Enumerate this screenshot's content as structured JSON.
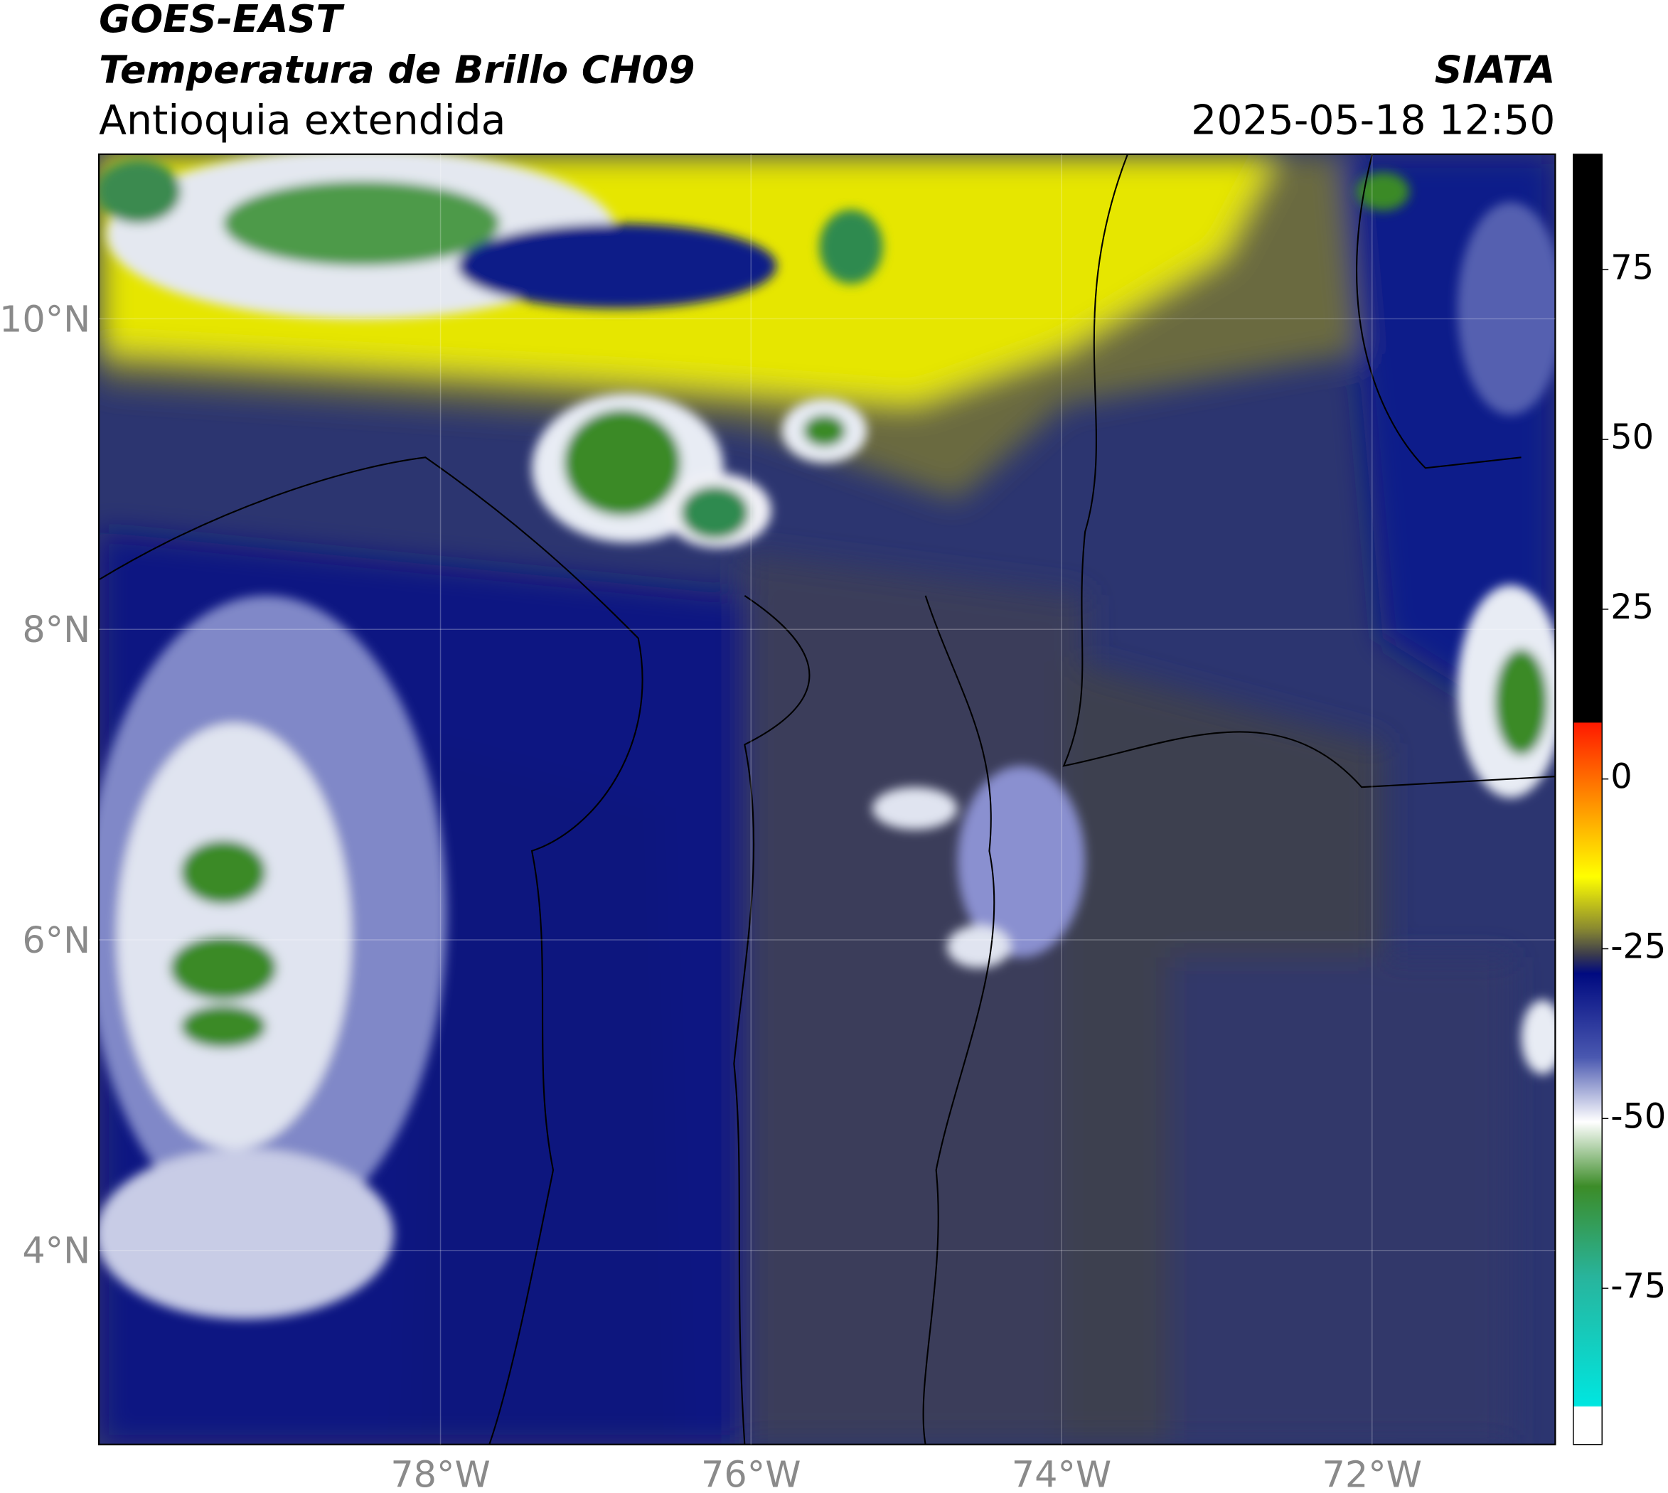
{
  "header": {
    "title": "GOES-EAST",
    "subtitle": "Temperatura de Brillo CH09",
    "region": "Antioquia extendida",
    "agency": "SIATA",
    "datetime": "2025-05-18 12:50"
  },
  "map": {
    "lon_range": [
      -80.2,
      -70.82
    ],
    "lat_range": [
      2.75,
      11.06
    ],
    "lon_ticks": [
      {
        "value": -78,
        "label": "78°W"
      },
      {
        "value": -76,
        "label": "76°W"
      },
      {
        "value": -74,
        "label": "74°W"
      },
      {
        "value": -72,
        "label": "72°W"
      }
    ],
    "lat_ticks": [
      {
        "value": 10,
        "label": "10°N"
      },
      {
        "value": 8,
        "label": "8°N"
      },
      {
        "value": 6,
        "label": "6°N"
      },
      {
        "value": 4,
        "label": "4°N"
      }
    ],
    "grid": true
  },
  "colorbar": {
    "range": [
      -98,
      92
    ],
    "ticks": [
      75,
      50,
      25,
      0,
      -25,
      -50,
      -75
    ]
  }
}
